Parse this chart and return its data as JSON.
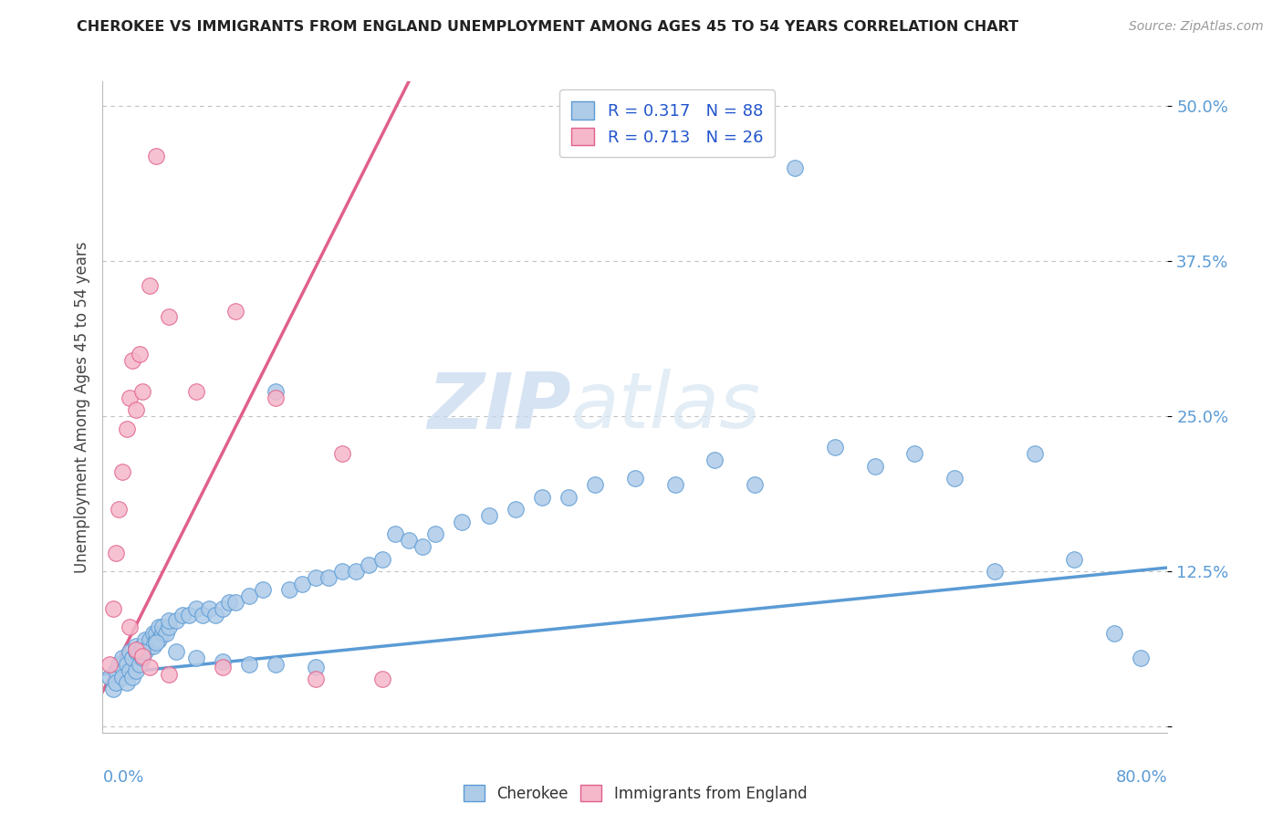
{
  "title": "CHEROKEE VS IMMIGRANTS FROM ENGLAND UNEMPLOYMENT AMONG AGES 45 TO 54 YEARS CORRELATION CHART",
  "source": "Source: ZipAtlas.com",
  "ylabel": "Unemployment Among Ages 45 to 54 years",
  "yticks": [
    0.0,
    0.125,
    0.25,
    0.375,
    0.5
  ],
  "ytick_labels": [
    "",
    "12.5%",
    "25.0%",
    "37.5%",
    "50.0%"
  ],
  "xlim": [
    0.0,
    0.8
  ],
  "ylim": [
    -0.005,
    0.52
  ],
  "legend_r1": "R = 0.317   N = 88",
  "legend_r2": "R = 0.713   N = 26",
  "cherokee_fill": "#aecbe8",
  "england_fill": "#f5b8cb",
  "cherokee_edge": "#5b9bd5",
  "england_edge": "#e0608a",
  "legend_text_color": "#2255cc",
  "watermark_zip": "ZIP",
  "watermark_atlas": "atlas",
  "cherokee_x": [
    0.005,
    0.008,
    0.01,
    0.01,
    0.012,
    0.015,
    0.015,
    0.018,
    0.018,
    0.02,
    0.02,
    0.022,
    0.022,
    0.025,
    0.025,
    0.025,
    0.028,
    0.028,
    0.03,
    0.03,
    0.032,
    0.032,
    0.035,
    0.035,
    0.038,
    0.038,
    0.04,
    0.04,
    0.042,
    0.042,
    0.045,
    0.045,
    0.048,
    0.05,
    0.05,
    0.055,
    0.06,
    0.065,
    0.07,
    0.075,
    0.08,
    0.085,
    0.09,
    0.095,
    0.1,
    0.11,
    0.12,
    0.13,
    0.14,
    0.15,
    0.16,
    0.17,
    0.18,
    0.19,
    0.2,
    0.21,
    0.22,
    0.23,
    0.24,
    0.25,
    0.27,
    0.29,
    0.31,
    0.33,
    0.35,
    0.37,
    0.4,
    0.43,
    0.46,
    0.49,
    0.52,
    0.55,
    0.58,
    0.61,
    0.64,
    0.67,
    0.7,
    0.73,
    0.76,
    0.78,
    0.03,
    0.04,
    0.055,
    0.07,
    0.09,
    0.11,
    0.13,
    0.16
  ],
  "cherokee_y": [
    0.04,
    0.03,
    0.045,
    0.035,
    0.05,
    0.04,
    0.055,
    0.035,
    0.05,
    0.045,
    0.06,
    0.04,
    0.055,
    0.045,
    0.06,
    0.065,
    0.05,
    0.06,
    0.055,
    0.065,
    0.06,
    0.07,
    0.065,
    0.07,
    0.065,
    0.075,
    0.07,
    0.075,
    0.07,
    0.08,
    0.075,
    0.08,
    0.075,
    0.08,
    0.085,
    0.085,
    0.09,
    0.09,
    0.095,
    0.09,
    0.095,
    0.09,
    0.095,
    0.1,
    0.1,
    0.105,
    0.11,
    0.27,
    0.11,
    0.115,
    0.12,
    0.12,
    0.125,
    0.125,
    0.13,
    0.135,
    0.155,
    0.15,
    0.145,
    0.155,
    0.165,
    0.17,
    0.175,
    0.185,
    0.185,
    0.195,
    0.2,
    0.195,
    0.215,
    0.195,
    0.45,
    0.225,
    0.21,
    0.22,
    0.2,
    0.125,
    0.22,
    0.135,
    0.075,
    0.055,
    0.06,
    0.068,
    0.06,
    0.055,
    0.052,
    0.05,
    0.05,
    0.048
  ],
  "england_x": [
    0.005,
    0.008,
    0.01,
    0.012,
    0.015,
    0.018,
    0.02,
    0.022,
    0.025,
    0.028,
    0.03,
    0.035,
    0.04,
    0.05,
    0.07,
    0.1,
    0.13,
    0.18,
    0.02,
    0.025,
    0.03,
    0.035,
    0.05,
    0.09,
    0.16,
    0.21
  ],
  "england_y": [
    0.05,
    0.095,
    0.14,
    0.175,
    0.205,
    0.24,
    0.265,
    0.295,
    0.255,
    0.3,
    0.27,
    0.355,
    0.46,
    0.33,
    0.27,
    0.335,
    0.265,
    0.22,
    0.08,
    0.062,
    0.057,
    0.048,
    0.042,
    0.048,
    0.038,
    0.038
  ],
  "cherokee_trend_x": [
    0.0,
    0.8
  ],
  "cherokee_trend_y": [
    0.042,
    0.128
  ],
  "england_trend_x": [
    0.0,
    0.23
  ],
  "england_trend_y": [
    0.028,
    0.52
  ]
}
